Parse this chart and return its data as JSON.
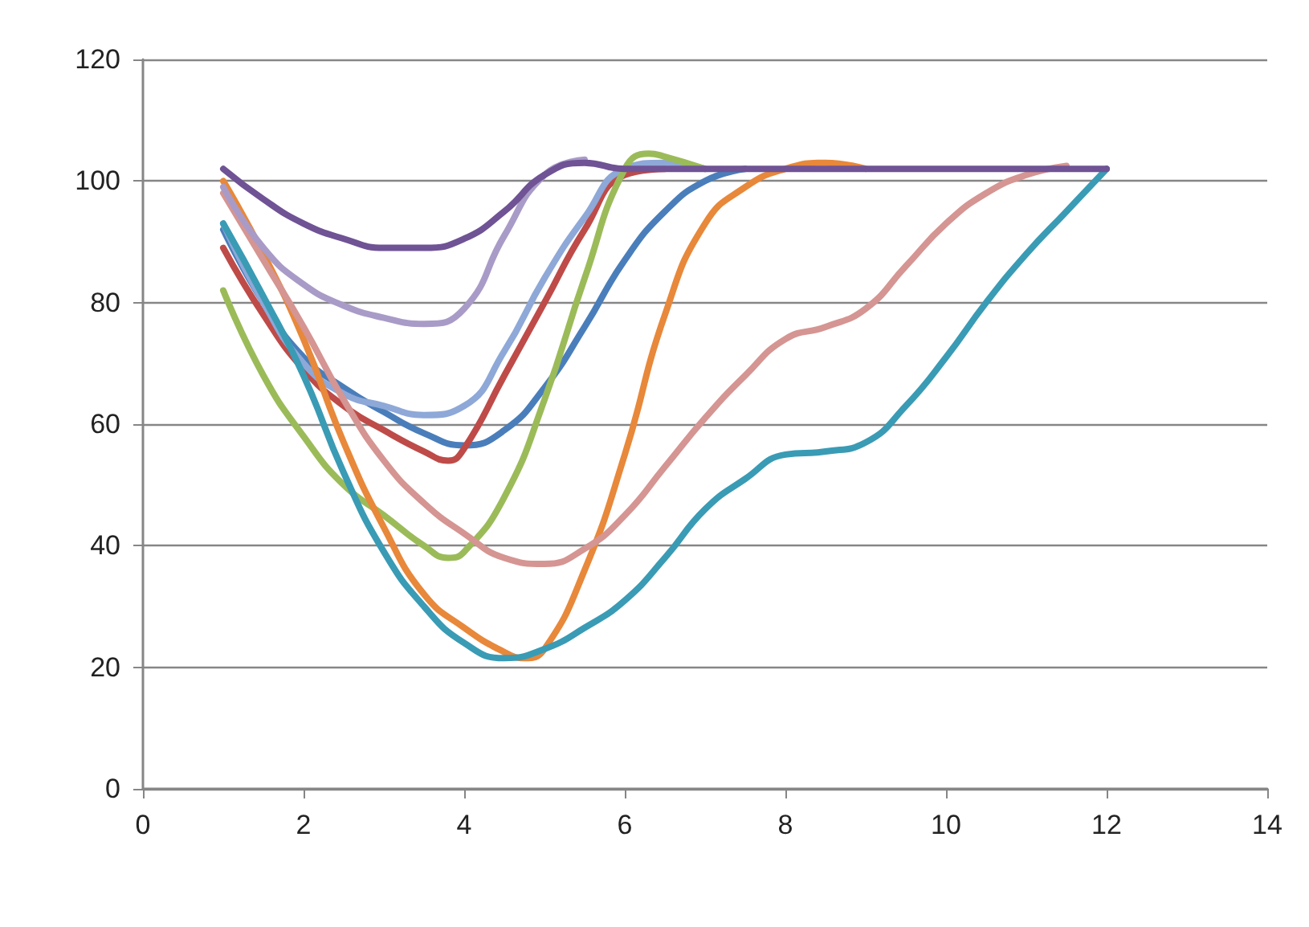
{
  "chart_data": {
    "type": "line",
    "xlim": [
      0,
      14
    ],
    "xticks": [
      0,
      2,
      4,
      6,
      8,
      10,
      12,
      14
    ],
    "ylim": [
      0,
      120
    ],
    "yticks": [
      0,
      20,
      40,
      60,
      80,
      100,
      120
    ],
    "grid": "y",
    "marker": "none",
    "line_style": "solid",
    "series": [
      {
        "color": "#4a7ebb",
        "x": [
          1,
          1.5,
          2,
          2.5,
          3,
          3.5,
          4,
          4.5,
          5,
          5.5,
          6,
          6.5,
          7,
          7.5
        ],
        "values": [
          92,
          80,
          71,
          66,
          62,
          58.5,
          56.5,
          59,
          66,
          76,
          87,
          95,
          100,
          102
        ]
      },
      {
        "color": "#be4b48",
        "x": [
          1,
          1.5,
          2,
          2.5,
          3,
          3.5,
          3.8,
          4,
          4.5,
          5,
          5.5,
          6,
          6.5
        ],
        "values": [
          89,
          78,
          69,
          63,
          59,
          55.5,
          54,
          56,
          68,
          80,
          92,
          101,
          102
        ]
      },
      {
        "color": "#8ea8d8",
        "x": [
          1,
          1.5,
          2,
          2.5,
          3,
          3.5,
          4,
          4.5,
          5,
          5.5,
          6,
          6.5,
          7
        ],
        "values": [
          93,
          80,
          70,
          65,
          63,
          61.5,
          63,
          72,
          84,
          94,
          102,
          103,
          102
        ]
      },
      {
        "color": "#9bbb59",
        "x": [
          1,
          1.5,
          2,
          2.5,
          3,
          3.5,
          3.8,
          4,
          4.5,
          5,
          5.5,
          6,
          6.3,
          6.5,
          7
        ],
        "values": [
          82,
          68,
          58,
          50,
          45,
          40,
          38,
          39,
          48,
          64,
          84,
          102,
          104.5,
          104,
          102
        ]
      },
      {
        "color": "#e8883a",
        "x": [
          1,
          1.5,
          2,
          2.5,
          3,
          3.5,
          4,
          4.5,
          4.75,
          5,
          5.5,
          6,
          6.5,
          7,
          7.5,
          8,
          8.5,
          9
        ],
        "values": [
          100,
          88,
          74,
          57,
          43,
          32,
          26.5,
          22.5,
          21.5,
          23,
          36,
          55,
          78,
          93,
          99,
          102,
          103,
          102
        ]
      },
      {
        "color": "#3a9bb5",
        "x": [
          1,
          1.5,
          2,
          2.5,
          3,
          3.5,
          4,
          4.5,
          5,
          5.5,
          6,
          6.5,
          7,
          7.5,
          8,
          8.5,
          9,
          9.5,
          10,
          10.5,
          11,
          11.5,
          12
        ],
        "values": [
          93,
          81,
          68,
          52,
          39,
          30,
          24,
          21.5,
          23,
          26.5,
          31,
          38,
          46,
          51,
          55,
          55.5,
          57,
          63,
          71,
          80,
          88,
          95,
          102
        ]
      },
      {
        "color": "#d59592",
        "x": [
          1,
          1.5,
          2,
          2.5,
          3,
          3.5,
          4,
          4.5,
          5,
          5.5,
          6,
          6.5,
          7,
          7.5,
          8,
          8.5,
          9,
          9.5,
          10,
          10.5,
          11,
          11.5
        ],
        "values": [
          98,
          87,
          76,
          64,
          54,
          47,
          42,
          38,
          37,
          39.5,
          45,
          53,
          61,
          68,
          74,
          76,
          79,
          86,
          93,
          98,
          101,
          102.5
        ]
      },
      {
        "color": "#a99bc7",
        "x": [
          1,
          1.5,
          2,
          2.5,
          3,
          3.5,
          4,
          4.5,
          5,
          5.5
        ],
        "values": [
          99,
          89,
          83,
          79.5,
          77.5,
          76.5,
          79,
          91,
          101,
          103.5
        ]
      },
      {
        "color": "#6f5395",
        "x": [
          1,
          1.5,
          2,
          2.5,
          3,
          3.5,
          4,
          4.5,
          5,
          5.5,
          6,
          7,
          8,
          9,
          10,
          11,
          12
        ],
        "values": [
          102,
          97,
          93,
          90.5,
          89,
          89,
          90.5,
          95,
          101,
          103,
          102,
          102,
          102,
          102,
          102,
          102,
          102
        ]
      }
    ]
  }
}
